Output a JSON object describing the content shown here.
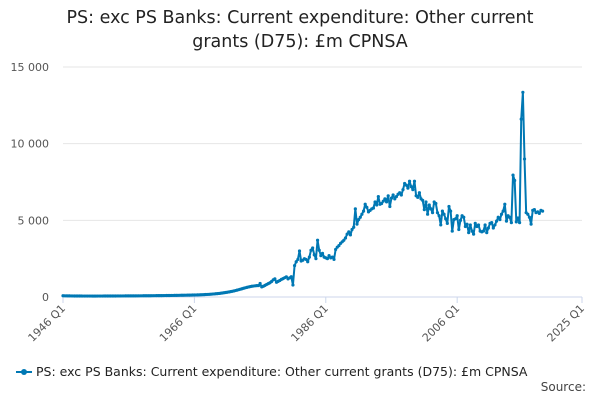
{
  "title_lines": [
    "PS: exc PS Banks: Current expenditure: Other current",
    "grants (D75): £m CPNSA"
  ],
  "legend": {
    "label": "PS: exc PS Banks: Current expenditure: Other current grants (D75): £m CPNSA",
    "icon": "line-marker-icon"
  },
  "source_label": "Source:",
  "colors": {
    "series": "#0078b4",
    "grid": "#e6e6e6",
    "axis": "#ccd6eb"
  },
  "chart_data": {
    "type": "line",
    "title": "PS: exc PS Banks: Current expenditure: Other current grants (D75): £m CPNSA",
    "xlabel": "",
    "ylabel": "",
    "x_ticks": [
      "1946 Q1",
      "1966 Q1",
      "1986 Q1",
      "2006 Q1",
      "2025 Q1"
    ],
    "y_ticks": [
      "0",
      "5 000",
      "10 000",
      "15 000"
    ],
    "ylim": [
      0,
      15000
    ],
    "grid": true,
    "legend_position": "bottom",
    "series": [
      {
        "name": "PS: exc PS Banks: Current expenditure: Other current grants (D75): £m CPNSA",
        "frequency": "quarterly",
        "start": "1946 Q1",
        "values": [
          80,
          78,
          76,
          74,
          72,
          70,
          68,
          67,
          66,
          65,
          64,
          63,
          62,
          62,
          62,
          61,
          61,
          61,
          60,
          60,
          60,
          61,
          61,
          62,
          62,
          63,
          63,
          64,
          64,
          65,
          66,
          66,
          67,
          68,
          68,
          69,
          70,
          70,
          71,
          72,
          72,
          73,
          74,
          75,
          75,
          76,
          77,
          78,
          79,
          80,
          80,
          81,
          82,
          83,
          84,
          86,
          87,
          88,
          89,
          91,
          92,
          93,
          95,
          96,
          98,
          100,
          101,
          103,
          105,
          107,
          109,
          111,
          113,
          115,
          117,
          119,
          122,
          124,
          126,
          129,
          132,
          135,
          138,
          142,
          146,
          150,
          156,
          162,
          168,
          175,
          183,
          192,
          200,
          210,
          220,
          232,
          246,
          260,
          275,
          292,
          310,
          330,
          350,
          370,
          395,
          420,
          448,
          478,
          508,
          540,
          570,
          600,
          630,
          655,
          680,
          700,
          715,
          730,
          740,
          745,
          880,
          660,
          700,
          760,
          820,
          870,
          930,
          1010,
          1120,
          1180,
          960,
          1020,
          1080,
          1150,
          1200,
          1260,
          1310,
          1180,
          1250,
          1320,
          780,
          2050,
          2300,
          2450,
          3000,
          2350,
          2400,
          2500,
          2450,
          2300,
          2600,
          3050,
          3200,
          2750,
          2500,
          3700,
          3050,
          2700,
          2850,
          2600,
          2550,
          2500,
          2700,
          2550,
          2600,
          2450,
          3100,
          3250,
          3350,
          3500,
          3600,
          3700,
          3850,
          4100,
          4250,
          4050,
          4400,
          4550,
          5750,
          4750,
          5050,
          5200,
          5400,
          5600,
          6050,
          5850,
          5550,
          5650,
          5750,
          5800,
          6200,
          6000,
          6550,
          6050,
          6100,
          6250,
          6400,
          6200,
          6600,
          5900,
          6450,
          6650,
          6400,
          6550,
          6700,
          6800,
          6650,
          7000,
          7400,
          7300,
          7100,
          7550,
          7200,
          7000,
          7550,
          6600,
          6500,
          6800,
          6400,
          6300,
          5700,
          6200,
          5400,
          6000,
          5750,
          5500,
          6200,
          6100,
          5500,
          5300,
          4700,
          5600,
          5400,
          5100,
          4800,
          5900,
          5600,
          4300,
          5050,
          5100,
          5300,
          4400,
          5000,
          5300,
          5200,
          4600,
          4750,
          4200,
          4700,
          4300,
          4100,
          4800,
          4600,
          4700,
          4300,
          4250,
          4300,
          4700,
          4200,
          4500,
          4800,
          4850,
          4500,
          4700,
          4950,
          5200,
          5050,
          5400,
          5600,
          6050,
          4950,
          5300,
          5200,
          4850,
          7950,
          7600,
          4900,
          5150,
          4850,
          11600,
          13350,
          9000,
          5500,
          5400,
          5200,
          4750,
          5650,
          5700,
          5500,
          5550,
          5450,
          5650,
          5600
        ]
      }
    ]
  }
}
